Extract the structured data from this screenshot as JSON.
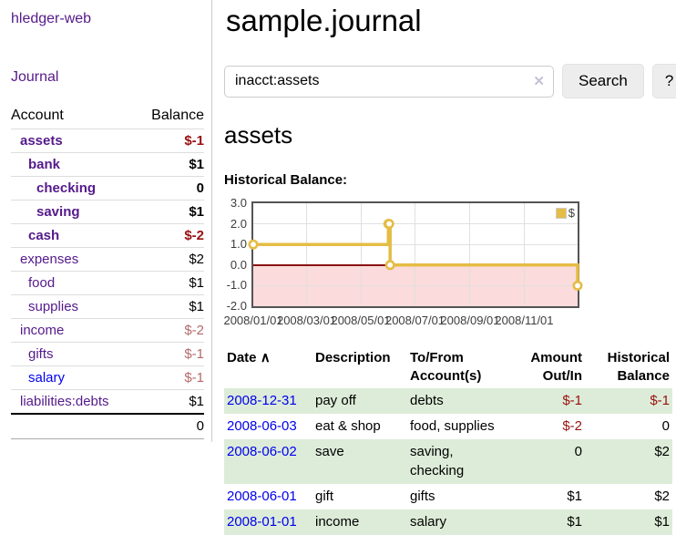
{
  "app": {
    "title": "hledger-web"
  },
  "sidebar": {
    "journal_link": "Journal",
    "accounts_table": {
      "account_header": "Account",
      "balance_header": "Balance",
      "rows": [
        {
          "name": "assets",
          "balance": "$-1",
          "indent": 1,
          "bold": true,
          "balance_style": "neg-strong"
        },
        {
          "name": "bank",
          "balance": "$1",
          "indent": 2,
          "bold": true,
          "balance_style": "pos"
        },
        {
          "name": "checking",
          "balance": "0",
          "indent": 3,
          "bold": true,
          "balance_style": "pos"
        },
        {
          "name": "saving",
          "balance": "$1",
          "indent": 3,
          "bold": true,
          "balance_style": "pos"
        },
        {
          "name": "cash",
          "balance": "$-2",
          "indent": 2,
          "bold": true,
          "balance_style": "neg-strong"
        },
        {
          "name": "expenses",
          "balance": "$2",
          "indent": 1,
          "bold": false,
          "balance_style": "pos"
        },
        {
          "name": "food",
          "balance": "$1",
          "indent": 2,
          "bold": false,
          "balance_style": "pos"
        },
        {
          "name": "supplies",
          "balance": "$1",
          "indent": 2,
          "bold": false,
          "balance_style": "pos"
        },
        {
          "name": "income",
          "balance": "$-2",
          "indent": 1,
          "bold": false,
          "balance_style": "neg-soft"
        },
        {
          "name": "gifts",
          "balance": "$-1",
          "indent": 2,
          "bold": false,
          "balance_style": "neg-soft"
        },
        {
          "name": "salary",
          "balance": "$-1",
          "indent": 2,
          "bold": false,
          "balance_style": "neg-soft",
          "link_color": "blue"
        },
        {
          "name": "liabilities:debts",
          "balance": "$1",
          "indent": 1,
          "bold": false,
          "balance_style": "pos"
        }
      ],
      "total": "0"
    }
  },
  "main": {
    "title": "sample.journal",
    "search": {
      "value": "inacct:assets",
      "clear_icon": "✕",
      "search_button": "Search",
      "help_button": "?"
    },
    "account_heading": "assets",
    "chart_label": "Historical Balance:"
  },
  "chart_data": {
    "type": "line",
    "title": "Historical Balance:",
    "step": true,
    "series": [
      {
        "name": "$",
        "color": "#e5bc45",
        "points": [
          [
            "2008-01-01",
            1
          ],
          [
            "2008-06-01",
            2
          ],
          [
            "2008-06-02",
            2
          ],
          [
            "2008-06-03",
            0
          ],
          [
            "2008-12-31",
            -1
          ]
        ]
      }
    ],
    "xlim": [
      "2008-01-01",
      "2008-12-31"
    ],
    "ylim": [
      -2,
      3
    ],
    "yticks": [
      3.0,
      2.0,
      1.0,
      0.0,
      -1.0,
      -2.0
    ],
    "xticks": [
      "2008/01/01",
      "2008/03/01",
      "2008/05/01",
      "2008/07/01",
      "2008/09/01",
      "2008/11/01"
    ],
    "grid": true,
    "legend": {
      "label": "$",
      "position": "top-right"
    },
    "zero_line_color": "#8b1212",
    "negative_region_fill": "#fbdbdb"
  },
  "register": {
    "headers": {
      "date": "Date",
      "sort_icon": "∧",
      "description": "Description",
      "tofrom": "To/From\nAccount(s)",
      "amount": "Amount\nOut/In",
      "historical": "Historical\nBalance"
    },
    "rows": [
      {
        "date": "2008-12-31",
        "description": "pay off",
        "accounts": "debts",
        "amount": "$-1",
        "balance": "$-1",
        "green": true
      },
      {
        "date": "2008-06-03",
        "description": "eat & shop",
        "accounts": "food, supplies",
        "amount": "$-2",
        "balance": "0",
        "green": false
      },
      {
        "date": "2008-06-02",
        "description": "save",
        "accounts": "saving,\nchecking",
        "amount": "0",
        "balance": "$2",
        "green": true
      },
      {
        "date": "2008-06-01",
        "description": "gift",
        "accounts": "gifts",
        "amount": "$1",
        "balance": "$2",
        "green": false
      },
      {
        "date": "2008-01-01",
        "description": "income",
        "accounts": "salary",
        "amount": "$1",
        "balance": "$1",
        "green": true
      }
    ]
  }
}
